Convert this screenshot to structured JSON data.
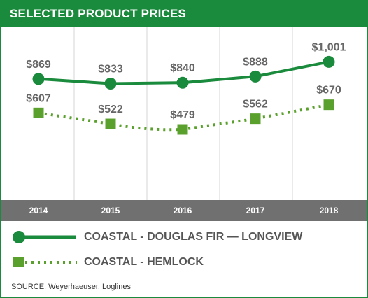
{
  "chart_data": {
    "type": "line",
    "title": "SELECTED PRODUCT PRICES",
    "categories": [
      "2014",
      "2015",
      "2016",
      "2017",
      "2018"
    ],
    "series": [
      {
        "name": "COASTAL - DOUGLAS FIR — LONGVIEW",
        "values": [
          869,
          833,
          840,
          888,
          1001
        ],
        "labels": [
          "$869",
          "$833",
          "$840",
          "$888",
          "$1,001"
        ],
        "color": "#1a8a3c",
        "line_style": "solid",
        "marker": "circle"
      },
      {
        "name": "COASTAL - HEMLOCK",
        "values": [
          607,
          522,
          479,
          562,
          670
        ],
        "labels": [
          "$607",
          "$522",
          "$479",
          "$562",
          "$670"
        ],
        "color": "#5aa02c",
        "line_style": "dotted",
        "marker": "square"
      }
    ],
    "grid": "vertical",
    "legend_position": "bottom",
    "source": "SOURCE: Weyerhaeuser, Loglines"
  },
  "colors": {
    "title_background": "#1a8a3c",
    "axis_bar": "#707070",
    "label_text": "#666666"
  }
}
